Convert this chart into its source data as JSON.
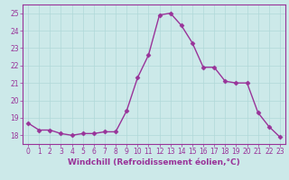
{
  "x": [
    0,
    1,
    2,
    3,
    4,
    5,
    6,
    7,
    8,
    9,
    10,
    11,
    12,
    13,
    14,
    15,
    16,
    17,
    18,
    19,
    20,
    21,
    22,
    23
  ],
  "y": [
    18.7,
    18.3,
    18.3,
    18.1,
    18.0,
    18.1,
    18.1,
    18.2,
    18.2,
    19.4,
    21.3,
    22.6,
    24.9,
    25.0,
    24.3,
    23.3,
    21.9,
    21.9,
    21.1,
    21.0,
    21.0,
    19.3,
    18.5,
    17.9
  ],
  "line_color": "#993399",
  "marker": "D",
  "markersize": 2.5,
  "linewidth": 1.0,
  "xlabel": "Windchill (Refroidissement éolien,°C)",
  "xlabel_fontsize": 6.5,
  "ylim": [
    17.5,
    25.5
  ],
  "yticks": [
    18,
    19,
    20,
    21,
    22,
    23,
    24,
    25
  ],
  "xticks": [
    0,
    1,
    2,
    3,
    4,
    5,
    6,
    7,
    8,
    9,
    10,
    11,
    12,
    13,
    14,
    15,
    16,
    17,
    18,
    19,
    20,
    21,
    22,
    23
  ],
  "background_color": "#cce9e9",
  "grid_color": "#b0d8d8",
  "tick_fontsize": 5.5,
  "tick_color": "#993399",
  "label_color": "#993399",
  "spine_color": "#993399"
}
